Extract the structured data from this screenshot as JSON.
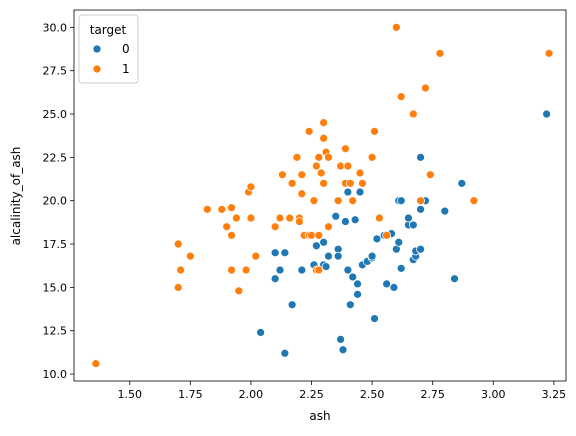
{
  "chart_data": {
    "type": "scatter",
    "title": "",
    "xlabel": "ash",
    "ylabel": "alcalinity_of_ash",
    "xlim": [
      1.27,
      3.3
    ],
    "ylim": [
      9.6,
      31.0
    ],
    "xticks": [
      1.5,
      1.75,
      2.0,
      2.25,
      2.5,
      2.75,
      3.0,
      3.25
    ],
    "xtick_labels": [
      "1.50",
      "1.75",
      "2.00",
      "2.25",
      "2.50",
      "2.75",
      "3.00",
      "3.25"
    ],
    "yticks": [
      10.0,
      12.5,
      15.0,
      17.5,
      20.0,
      22.5,
      25.0,
      27.5,
      30.0
    ],
    "ytick_labels": [
      "10.0",
      "12.5",
      "15.0",
      "17.5",
      "20.0",
      "22.5",
      "25.0",
      "27.5",
      "30.0"
    ],
    "grid": false,
    "legend": {
      "title": "target",
      "placement": "top-left",
      "entries": [
        {
          "label": "0",
          "color": "#1f77b4"
        },
        {
          "label": "1",
          "color": "#ff7f0e"
        }
      ]
    },
    "series": [
      {
        "name": "0",
        "color": "#1f77b4",
        "points": [
          [
            2.04,
            12.4
          ],
          [
            2.1,
            15.5
          ],
          [
            2.1,
            17.0
          ],
          [
            2.12,
            16.0
          ],
          [
            2.14,
            17.0
          ],
          [
            2.14,
            11.2
          ],
          [
            2.17,
            14.0
          ],
          [
            2.21,
            16.0
          ],
          [
            2.26,
            16.3
          ],
          [
            2.27,
            17.4
          ],
          [
            2.28,
            16.0
          ],
          [
            2.3,
            17.6
          ],
          [
            2.3,
            16.3
          ],
          [
            2.31,
            16.2
          ],
          [
            2.32,
            16.8
          ],
          [
            2.35,
            19.1
          ],
          [
            2.36,
            17.2
          ],
          [
            2.36,
            16.8
          ],
          [
            2.37,
            12.0
          ],
          [
            2.38,
            11.4
          ],
          [
            2.39,
            18.8
          ],
          [
            2.4,
            16.0
          ],
          [
            2.4,
            20.5
          ],
          [
            2.41,
            14.0
          ],
          [
            2.42,
            15.6
          ],
          [
            2.43,
            18.9
          ],
          [
            2.44,
            15.2
          ],
          [
            2.44,
            14.6
          ],
          [
            2.45,
            20.5
          ],
          [
            2.46,
            16.3
          ],
          [
            2.48,
            16.5
          ],
          [
            2.5,
            16.7
          ],
          [
            2.5,
            16.8
          ],
          [
            2.51,
            13.2
          ],
          [
            2.52,
            17.8
          ],
          [
            2.55,
            18.0
          ],
          [
            2.56,
            15.2
          ],
          [
            2.58,
            18.1
          ],
          [
            2.59,
            15.0
          ],
          [
            2.6,
            17.2
          ],
          [
            2.61,
            20.0
          ],
          [
            2.61,
            17.6
          ],
          [
            2.62,
            16.1
          ],
          [
            2.62,
            20.0
          ],
          [
            2.65,
            18.6
          ],
          [
            2.65,
            19.0
          ],
          [
            2.67,
            16.6
          ],
          [
            2.67,
            18.6
          ],
          [
            2.68,
            16.8
          ],
          [
            2.68,
            17.1
          ],
          [
            2.7,
            17.2
          ],
          [
            2.7,
            19.5
          ],
          [
            2.7,
            22.5
          ],
          [
            2.72,
            20.0
          ],
          [
            2.8,
            19.4
          ],
          [
            2.84,
            15.5
          ],
          [
            2.87,
            21.0
          ],
          [
            3.22,
            25.0
          ]
        ]
      },
      {
        "name": "1",
        "color": "#ff7f0e",
        "points": [
          [
            1.36,
            10.6
          ],
          [
            1.7,
            17.5
          ],
          [
            1.7,
            15.0
          ],
          [
            1.71,
            16.0
          ],
          [
            1.75,
            16.8
          ],
          [
            1.82,
            19.5
          ],
          [
            1.88,
            19.5
          ],
          [
            1.9,
            18.5
          ],
          [
            1.92,
            19.6
          ],
          [
            1.92,
            18.0
          ],
          [
            1.92,
            16.0
          ],
          [
            1.94,
            19.0
          ],
          [
            1.95,
            14.8
          ],
          [
            1.98,
            16.0
          ],
          [
            1.99,
            20.5
          ],
          [
            2.0,
            20.8
          ],
          [
            2.0,
            19.0
          ],
          [
            2.02,
            16.8
          ],
          [
            2.1,
            18.5
          ],
          [
            2.12,
            19.0
          ],
          [
            2.13,
            21.5
          ],
          [
            2.16,
            19.0
          ],
          [
            2.17,
            21.0
          ],
          [
            2.19,
            22.5
          ],
          [
            2.2,
            19.0
          ],
          [
            2.2,
            18.8
          ],
          [
            2.21,
            20.4
          ],
          [
            2.21,
            21.5
          ],
          [
            2.22,
            18.0
          ],
          [
            2.24,
            18.0
          ],
          [
            2.24,
            24.0
          ],
          [
            2.25,
            18.0
          ],
          [
            2.26,
            20.0
          ],
          [
            2.27,
            22.0
          ],
          [
            2.27,
            16.0
          ],
          [
            2.28,
            18.0
          ],
          [
            2.28,
            22.5
          ],
          [
            2.28,
            16.0
          ],
          [
            2.29,
            21.6
          ],
          [
            2.3,
            23.6
          ],
          [
            2.3,
            24.5
          ],
          [
            2.3,
            21.0
          ],
          [
            2.31,
            22.8
          ],
          [
            2.32,
            22.5
          ],
          [
            2.32,
            18.5
          ],
          [
            2.36,
            20.0
          ],
          [
            2.37,
            22.0
          ],
          [
            2.39,
            21.0
          ],
          [
            2.39,
            23.0
          ],
          [
            2.4,
            22.0
          ],
          [
            2.41,
            21.0
          ],
          [
            2.42,
            20.0
          ],
          [
            2.45,
            21.6
          ],
          [
            2.46,
            21.0
          ],
          [
            2.5,
            22.5
          ],
          [
            2.51,
            24.0
          ],
          [
            2.53,
            19.0
          ],
          [
            2.56,
            18.0
          ],
          [
            2.6,
            30.0
          ],
          [
            2.62,
            26.0
          ],
          [
            2.67,
            25.0
          ],
          [
            2.7,
            20.0
          ],
          [
            2.72,
            26.5
          ],
          [
            2.74,
            21.5
          ],
          [
            2.78,
            28.5
          ],
          [
            2.92,
            20.0
          ],
          [
            3.23,
            28.5
          ]
        ]
      }
    ]
  }
}
